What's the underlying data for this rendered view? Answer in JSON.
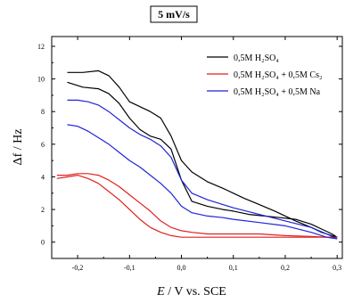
{
  "chart_data": {
    "type": "line",
    "title": "5 mV/s",
    "xlabel": "E / V vs. SCE",
    "ylabel": "Δf / Hz",
    "xlim": [
      -0.25,
      0.31
    ],
    "ylim": [
      -1,
      12.6
    ],
    "x_ticks": [
      "-0,2",
      "-0,1",
      "0,0",
      "0,1",
      "0,2",
      "0,3"
    ],
    "y_ticks": [
      "0",
      "2",
      "4",
      "6",
      "8",
      "10",
      "12"
    ],
    "x_tick_values": [
      -0.2,
      -0.1,
      0.0,
      0.1,
      0.2,
      0.3
    ],
    "y_tick_values": [
      0,
      2,
      4,
      6,
      8,
      10,
      12
    ],
    "legend_position": "top-right",
    "grid": false,
    "series": [
      {
        "name": "0,5M H₂SO₄",
        "color": "#000000",
        "branches": [
          {
            "x": [
              -0.22,
              -0.19,
              -0.16,
              -0.14,
              -0.12,
              -0.1,
              -0.08,
              -0.06,
              -0.04,
              -0.02,
              0.0,
              0.02,
              0.05,
              0.08,
              0.1,
              0.12,
              0.15,
              0.18,
              0.2,
              0.22,
              0.25,
              0.27,
              0.29,
              0.3
            ],
            "y": [
              10.4,
              10.4,
              10.5,
              10.2,
              9.5,
              8.6,
              8.3,
              8.0,
              7.6,
              6.5,
              5.0,
              4.3,
              3.7,
              3.3,
              3.0,
              2.7,
              2.3,
              1.9,
              1.6,
              1.3,
              0.9,
              0.6,
              0.4,
              0.3
            ]
          },
          {
            "x": [
              -0.22,
              -0.19,
              -0.16,
              -0.14,
              -0.12,
              -0.1,
              -0.08,
              -0.06,
              -0.04,
              -0.02,
              0.0,
              0.02,
              0.05,
              0.08,
              0.1,
              0.13,
              0.16,
              0.19,
              0.22,
              0.25,
              0.27,
              0.29,
              0.3
            ],
            "y": [
              9.8,
              9.5,
              9.4,
              9.1,
              8.5,
              7.6,
              6.9,
              6.5,
              6.3,
              5.7,
              3.8,
              2.5,
              2.2,
              2.0,
              1.9,
              1.7,
              1.6,
              1.5,
              1.4,
              1.1,
              0.8,
              0.5,
              0.3
            ]
          }
        ]
      },
      {
        "name": "0,5M H₂SO₄ + 0,5M Cs₂",
        "color": "#e0201e",
        "branches": [
          {
            "x": [
              -0.24,
              -0.22,
              -0.2,
              -0.18,
              -0.16,
              -0.14,
              -0.12,
              -0.1,
              -0.08,
              -0.06,
              -0.04,
              -0.02,
              0.0,
              0.02,
              0.05,
              0.1,
              0.15,
              0.2,
              0.25,
              0.28,
              0.3
            ],
            "y": [
              4.1,
              4.1,
              4.2,
              4.2,
              4.1,
              3.8,
              3.4,
              2.9,
              2.4,
              1.9,
              1.3,
              0.9,
              0.7,
              0.6,
              0.5,
              0.5,
              0.5,
              0.4,
              0.35,
              0.3,
              0.3
            ]
          },
          {
            "x": [
              -0.24,
              -0.22,
              -0.2,
              -0.18,
              -0.16,
              -0.14,
              -0.12,
              -0.1,
              -0.08,
              -0.06,
              -0.04,
              -0.02,
              0.0,
              0.02,
              0.05,
              0.1,
              0.15,
              0.2,
              0.25,
              0.28,
              0.3
            ],
            "y": [
              3.9,
              4.0,
              4.1,
              3.9,
              3.6,
              3.1,
              2.6,
              2.0,
              1.4,
              0.9,
              0.6,
              0.4,
              0.3,
              0.3,
              0.3,
              0.3,
              0.3,
              0.3,
              0.3,
              0.3,
              0.3
            ]
          }
        ]
      },
      {
        "name": "0,5M H₂SO₄ + 0,5M Na",
        "color": "#1f24d8",
        "branches": [
          {
            "x": [
              -0.22,
              -0.2,
              -0.18,
              -0.16,
              -0.14,
              -0.12,
              -0.1,
              -0.08,
              -0.06,
              -0.04,
              -0.02,
              0.0,
              0.02,
              0.05,
              0.08,
              0.1,
              0.15,
              0.2,
              0.25,
              0.28,
              0.3
            ],
            "y": [
              8.7,
              8.7,
              8.6,
              8.4,
              8.0,
              7.5,
              7.0,
              6.6,
              6.3,
              5.9,
              5.2,
              3.8,
              3.0,
              2.6,
              2.3,
              2.1,
              1.7,
              1.3,
              0.9,
              0.5,
              0.2
            ]
          },
          {
            "x": [
              -0.22,
              -0.2,
              -0.18,
              -0.16,
              -0.14,
              -0.12,
              -0.1,
              -0.08,
              -0.06,
              -0.04,
              -0.02,
              0.0,
              0.02,
              0.05,
              0.08,
              0.1,
              0.15,
              0.2,
              0.25,
              0.28,
              0.3
            ],
            "y": [
              7.2,
              7.1,
              6.8,
              6.4,
              6.0,
              5.5,
              5.0,
              4.6,
              4.1,
              3.6,
              3.0,
              2.2,
              1.8,
              1.6,
              1.5,
              1.4,
              1.2,
              1.0,
              0.6,
              0.3,
              0.2
            ]
          }
        ]
      }
    ]
  }
}
